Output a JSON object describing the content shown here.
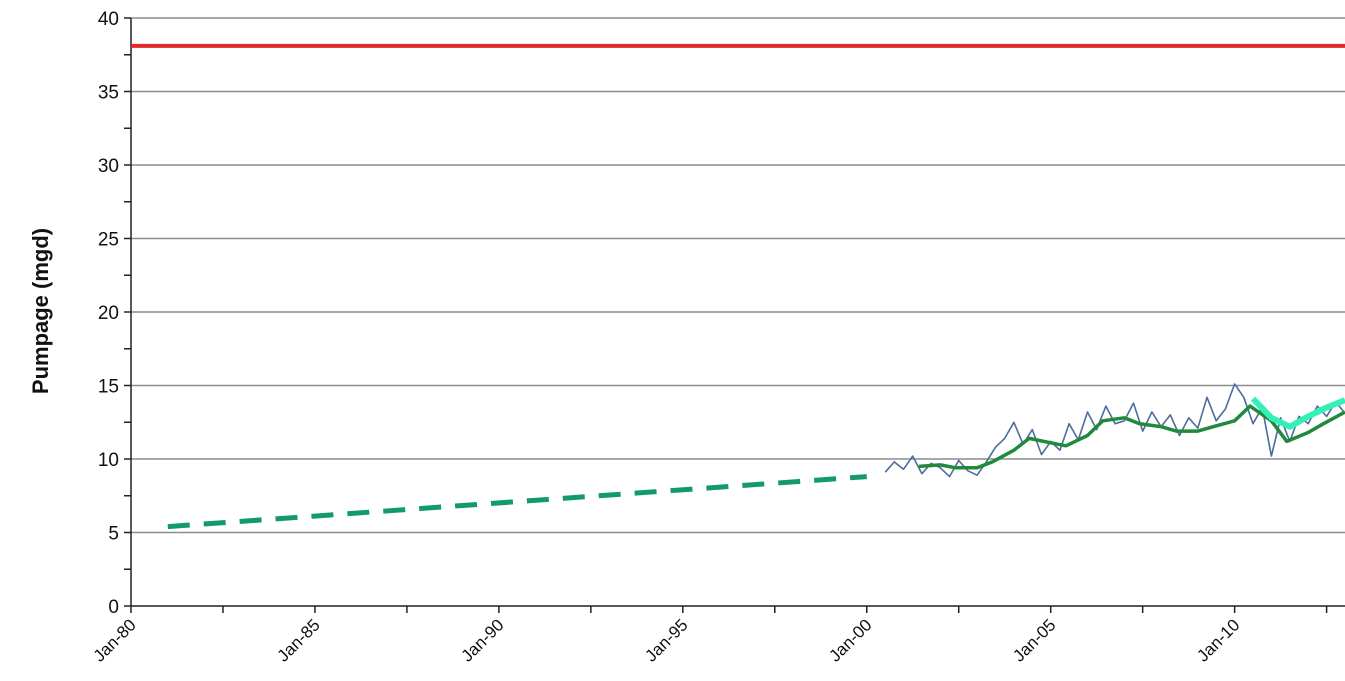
{
  "chart_data": {
    "type": "line",
    "title": "",
    "xlabel": "",
    "ylabel": "Pumpage (mgd)",
    "xlim": [
      "Jan-80",
      "Jan-13"
    ],
    "ylim": [
      0,
      40
    ],
    "y_ticks": [
      "0",
      "5",
      "10",
      "15",
      "20",
      "25",
      "30",
      "35",
      "40"
    ],
    "x_ticks": [
      "Jan-80",
      "Jan-85",
      "Jan-90",
      "Jan-95",
      "Jan-00",
      "Jan-05",
      "Jan-10"
    ],
    "grid": true,
    "legend": "none",
    "colors": {
      "capacity": "#e02a2a",
      "projection": "#139a6a",
      "monthly": "#4b6c9e",
      "trend": "#1f8a3b",
      "forecast": "#33f0b8",
      "grid": "#8c8c8c"
    },
    "series": [
      {
        "style": "solid-red",
        "x": [
          "Jan-80",
          "Jan-13"
        ],
        "y": [
          38.1,
          38.1
        ]
      },
      {
        "style": "dashed-teal",
        "x": [
          "Jan-81",
          "Jan-00"
        ],
        "y": [
          5.4,
          8.8
        ]
      },
      {
        "style": "thin-blue",
        "x": [
          "Jul-00",
          "Oct-00",
          "Jan-01",
          "Apr-01",
          "Jul-01",
          "Oct-01",
          "Jan-02",
          "Apr-02",
          "Jul-02",
          "Oct-02",
          "Jan-03",
          "Apr-03",
          "Jul-03",
          "Oct-03",
          "Jan-04",
          "Apr-04",
          "Jul-04",
          "Oct-04",
          "Jan-05",
          "Apr-05",
          "Jul-05",
          "Oct-05",
          "Jan-06",
          "Apr-06",
          "Jul-06",
          "Oct-06",
          "Jan-07",
          "Apr-07",
          "Jul-07",
          "Oct-07",
          "Jan-08",
          "Apr-08",
          "Jul-08",
          "Oct-08",
          "Jan-09",
          "Apr-09",
          "Jul-09",
          "Oct-09",
          "Jan-10",
          "Apr-10",
          "Jul-10",
          "Oct-10",
          "Jan-11",
          "Apr-11",
          "Jul-11",
          "Oct-11",
          "Jan-12",
          "Apr-12",
          "Jul-12",
          "Oct-12",
          "Jan-13"
        ],
        "y": [
          9.1,
          9.8,
          9.3,
          10.2,
          9.0,
          9.7,
          9.4,
          8.8,
          9.9,
          9.2,
          8.9,
          9.8,
          10.8,
          11.4,
          12.5,
          11.0,
          12.0,
          10.3,
          11.2,
          10.6,
          12.4,
          11.3,
          13.2,
          12.0,
          13.6,
          12.4,
          12.6,
          13.8,
          11.9,
          13.2,
          12.2,
          13.0,
          11.6,
          12.8,
          12.1,
          14.2,
          12.6,
          13.4,
          15.1,
          14.2,
          12.4,
          13.5,
          10.2,
          12.8,
          11.2,
          12.9,
          12.4,
          13.6,
          12.9,
          13.9,
          13.1
        ]
      },
      {
        "style": "smooth-green",
        "x": [
          "Jun-01",
          "Jan-02",
          "Jun-02",
          "Jan-03",
          "Jun-03",
          "Jan-04",
          "Jun-04",
          "Jan-05",
          "Jun-05",
          "Jan-06",
          "Jun-06",
          "Jan-07",
          "Jun-07",
          "Jan-08",
          "Jun-08",
          "Jan-09",
          "Jun-09",
          "Jan-10",
          "Jun-10",
          "Jan-11",
          "Jun-11",
          "Jan-12",
          "Jun-12",
          "Jan-13"
        ],
        "y": [
          9.5,
          9.6,
          9.4,
          9.4,
          9.8,
          10.6,
          11.4,
          11.1,
          10.9,
          11.6,
          12.6,
          12.8,
          12.4,
          12.2,
          11.9,
          11.9,
          12.2,
          12.6,
          13.6,
          12.6,
          11.2,
          11.8,
          12.4,
          13.2
        ]
      },
      {
        "style": "thick-mint",
        "x": [
          "Jul-10",
          "Jan-11",
          "Jul-11",
          "Jan-12",
          "Jul-12",
          "Jan-13"
        ],
        "y": [
          14.1,
          12.8,
          12.2,
          12.9,
          13.5,
          14.0
        ]
      }
    ]
  }
}
